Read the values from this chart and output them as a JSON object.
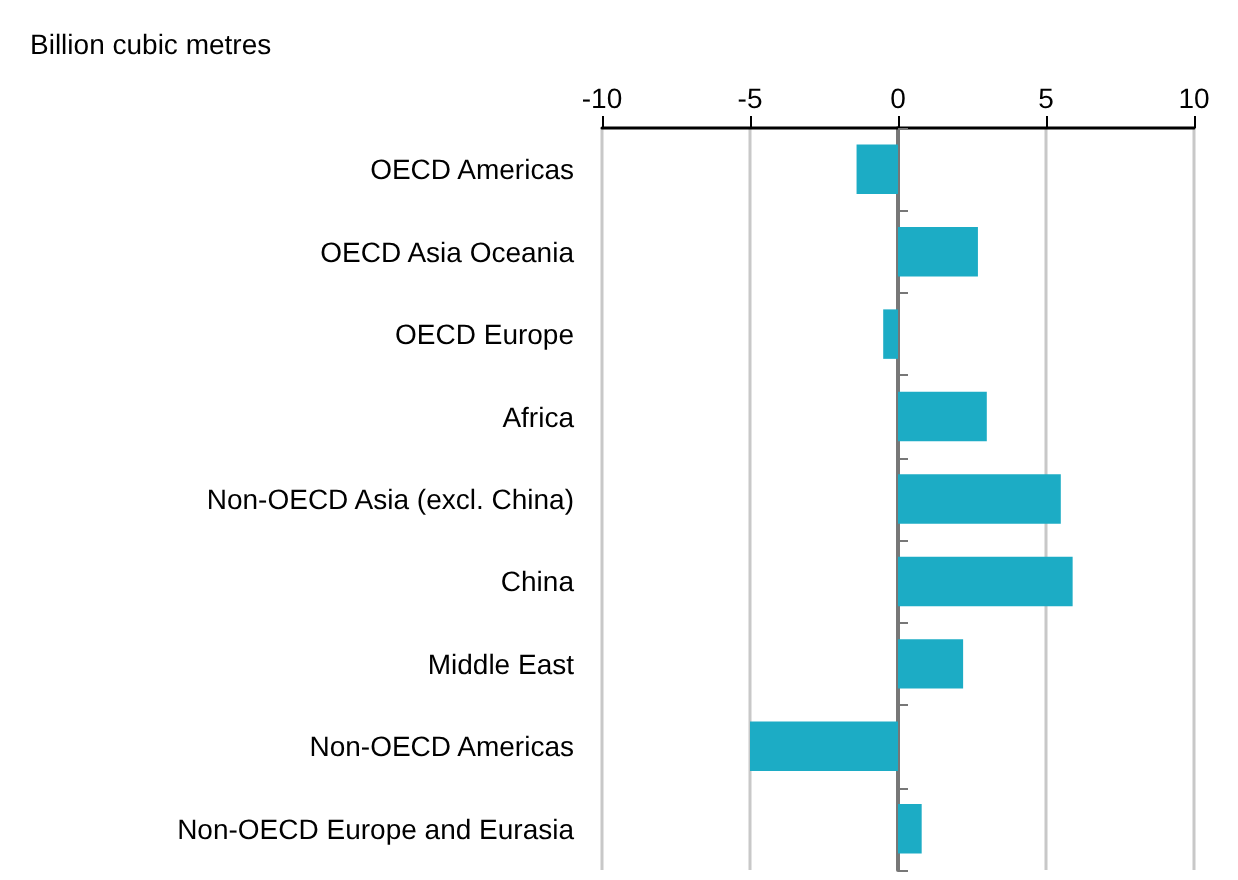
{
  "chart_data": {
    "type": "bar",
    "orientation": "horizontal",
    "annotations": [
      "Billion cubic metres"
    ],
    "categories": [
      "OECD Americas",
      "OECD Asia Oceania",
      "OECD Europe",
      "Africa",
      "Non-OECD Asia (excl. China)",
      "China",
      "Middle East",
      "Non-OECD Americas",
      "Non-OECD Europe and Eurasia"
    ],
    "values": [
      -1.4,
      2.7,
      -0.5,
      3.0,
      5.5,
      5.9,
      2.2,
      -5.0,
      0.8
    ],
    "color": "#1cacc5",
    "xlim": [
      -10,
      10
    ],
    "xticks": [
      -10,
      -5,
      0,
      5,
      10
    ],
    "grid": "x"
  }
}
